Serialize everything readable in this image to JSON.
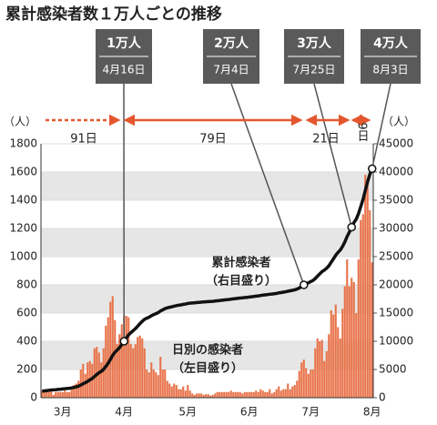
{
  "chart_data": {
    "type": "bar_line",
    "title": "累計感染者数１万人ごとの推移",
    "y_unit": "（人）",
    "y2_unit": "（人）",
    "categories": [
      null,
      null,
      null,
      null,
      null,
      null,
      null,
      null,
      null,
      "3月",
      null,
      null,
      null,
      null,
      null,
      null,
      null,
      null,
      null,
      null,
      null,
      null,
      null,
      null,
      null,
      null,
      null,
      null,
      null,
      null,
      null,
      null,
      null,
      null,
      null,
      null,
      "4月",
      null,
      null,
      null,
      null,
      null,
      null,
      null,
      null,
      null,
      null,
      null,
      null,
      null,
      null,
      null,
      null,
      null,
      null,
      null,
      null,
      null,
      null,
      null,
      null,
      null,
      null,
      null,
      "5月",
      null,
      null,
      null,
      null,
      null,
      null,
      null,
      null,
      null,
      null,
      null,
      null,
      null,
      null,
      null,
      null,
      null,
      null,
      null,
      null,
      null,
      null,
      null,
      null,
      null,
      null,
      "6月",
      null,
      null,
      null,
      null,
      null,
      null,
      null,
      null,
      null,
      null,
      null,
      null,
      null,
      null,
      null,
      null,
      null,
      null,
      null,
      null,
      null,
      null,
      null,
      null,
      null,
      null,
      "7月",
      null,
      null,
      null,
      null,
      null,
      null,
      null,
      null,
      null,
      null,
      null,
      null,
      null,
      null,
      null,
      null,
      null,
      null,
      null,
      null,
      null,
      null,
      null,
      null,
      null,
      null,
      "8月"
    ],
    "series": [
      {
        "name": "日別の感染者",
        "name_note": "（左目盛り）",
        "color": "#e8734a",
        "axis": "y",
        "values": [
          50,
          55,
          60,
          40,
          60,
          20,
          40,
          40,
          40,
          40,
          50,
          40,
          40,
          60,
          90,
          100,
          120,
          200,
          240,
          170,
          250,
          260,
          240,
          350,
          360,
          320,
          250,
          350,
          510,
          570,
          680,
          720,
          550,
          380,
          450,
          520,
          580,
          580,
          570,
          380,
          350,
          380,
          430,
          440,
          420,
          350,
          200,
          180,
          250,
          200,
          180,
          160,
          290,
          200,
          200,
          120,
          100,
          80,
          100,
          90,
          60,
          60,
          80,
          50,
          90,
          50,
          30,
          20,
          30,
          30,
          30,
          20,
          25,
          25,
          15,
          20,
          30,
          40,
          40,
          40,
          40,
          40,
          40,
          50,
          40,
          40,
          40,
          40,
          30,
          40,
          40,
          40,
          40,
          40,
          50,
          40,
          60,
          50,
          40,
          40,
          60,
          30,
          40,
          60,
          80,
          50,
          60,
          60,
          100,
          60,
          80,
          90,
          120,
          190,
          250,
          270,
          210,
          170,
          200,
          200,
          350,
          420,
          400,
          410,
          260,
          330,
          450,
          620,
          590,
          660,
          500,
          420,
          630,
          790,
          980,
          790,
          850,
          820,
          600,
          980,
          1260,
          1300,
          1580,
          1530,
          1330,
          960
        ]
      },
      {
        "name": "累計感染者",
        "name_note": "（右目盛り）",
        "color": "#111111",
        "axis": "y2",
        "values": [
          1150,
          1205,
          1265,
          1305,
          1365,
          1385,
          1425,
          1465,
          1505,
          1545,
          1595,
          1635,
          1675,
          1735,
          1825,
          1925,
          2045,
          2245,
          2485,
          2655,
          2905,
          3165,
          3405,
          3755,
          4115,
          4435,
          4685,
          5035,
          5545,
          6115,
          6795,
          7515,
          8065,
          8445,
          8895,
          9415,
          10000,
          10580,
          11150,
          11530,
          11880,
          12260,
          12690,
          13130,
          13550,
          13900,
          14100,
          14280,
          14530,
          14730,
          14910,
          15078,
          15376,
          15584,
          15792,
          15920,
          16028,
          16116,
          16224,
          16322,
          16390,
          16458,
          16546,
          16604,
          16702,
          16760,
          16798,
          16826,
          16864,
          16902,
          16940,
          16968,
          17001,
          17034,
          17057,
          17085,
          17123,
          17171,
          17219,
          17267,
          17315,
          17363,
          17411,
          17469,
          17517,
          17565,
          17613,
          17661,
          17699,
          17747,
          17795,
          17843,
          17891,
          17939,
          17997,
          18045,
          18113,
          18171,
          18219,
          18267,
          18335,
          18373,
          18421,
          18489,
          18577,
          18635,
          18703,
          18771,
          18879,
          18947,
          19035,
          19133,
          19261,
          19459,
          19717,
          19995,
          20205,
          20375,
          20575,
          20775,
          21125,
          21545,
          21945,
          22355,
          22615,
          22945,
          23395,
          24015,
          24605,
          25265,
          25765,
          26185,
          26815,
          27605,
          28585,
          29375,
          30225,
          31045,
          31645,
          32625,
          33885,
          35185,
          36765,
          38295,
          39625,
          40585
        ]
      }
    ],
    "ylim": [
      0,
      1800
    ],
    "yticks": [
      0,
      200,
      400,
      600,
      800,
      1000,
      1200,
      1400,
      1600,
      1800
    ],
    "y2lim": [
      0,
      45000
    ],
    "y2ticks": [
      0,
      5000,
      10000,
      15000,
      20000,
      25000,
      30000,
      35000,
      40000,
      45000
    ],
    "grid": "bands",
    "milestones": [
      {
        "label": "1万人",
        "date": "4月16日"
      },
      {
        "label": "2万人",
        "date": "7月4日"
      },
      {
        "label": "3万人",
        "date": "7月25日"
      },
      {
        "label": "4万人",
        "date": "8月3日"
      }
    ],
    "intervals": [
      "91日",
      "79日",
      "21日",
      "9日"
    ]
  }
}
